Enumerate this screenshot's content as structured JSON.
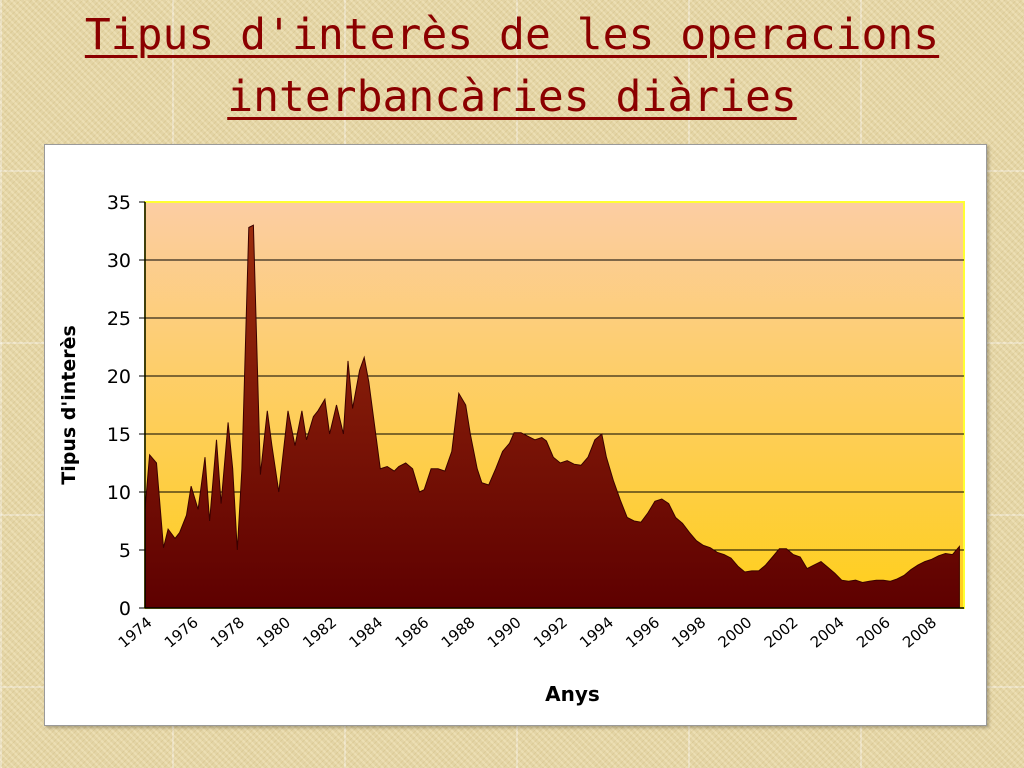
{
  "title_line1": "Tipus d'interès de les operacions",
  "title_line2": "interbancàries diàries",
  "colors": {
    "title": "#8b0000",
    "area_top": "#9c2d0e",
    "area_bottom": "#5e0000",
    "plot_bg_top": "#fccda3",
    "plot_bg_bottom": "#ffcf1a",
    "plot_border": "#ffff33"
  },
  "chart_data": {
    "type": "area",
    "title": "",
    "xlabel": "Anys",
    "ylabel": "Tipus d'interès",
    "xlim": [
      1974,
      2009.5
    ],
    "ylim": [
      0,
      35
    ],
    "yticks": [
      "0",
      "5",
      "10",
      "15",
      "20",
      "25",
      "30",
      "35"
    ],
    "xticks": [
      "1974",
      "1976",
      "1978",
      "1980",
      "1982",
      "1984",
      "1986",
      "1988",
      "1990",
      "1992",
      "1994",
      "1996",
      "1998",
      "2000",
      "2002",
      "2004",
      "2006",
      "2008"
    ],
    "grid": "horizontal",
    "series": [
      {
        "name": "",
        "x": [
          1974.0,
          1974.2,
          1974.5,
          1974.8,
          1975.0,
          1975.3,
          1975.5,
          1975.8,
          1976.0,
          1976.3,
          1976.6,
          1976.8,
          1977.1,
          1977.3,
          1977.6,
          1977.8,
          1978.0,
          1978.2,
          1978.5,
          1978.7,
          1979.0,
          1979.3,
          1979.5,
          1979.8,
          1980.0,
          1980.2,
          1980.5,
          1980.8,
          1981.0,
          1981.3,
          1981.5,
          1981.8,
          1982.0,
          1982.3,
          1982.6,
          1982.8,
          1983.0,
          1983.3,
          1983.5,
          1983.7,
          1984.0,
          1984.2,
          1984.5,
          1984.8,
          1985.0,
          1985.3,
          1985.6,
          1985.9,
          1986.1,
          1986.4,
          1986.7,
          1987.0,
          1987.3,
          1987.6,
          1987.9,
          1988.1,
          1988.4,
          1988.6,
          1988.9,
          1989.2,
          1989.5,
          1989.8,
          1990.0,
          1990.3,
          1990.6,
          1990.9,
          1991.2,
          1991.4,
          1991.7,
          1992.0,
          1992.3,
          1992.6,
          1992.9,
          1993.2,
          1993.5,
          1993.8,
          1994.0,
          1994.3,
          1994.6,
          1994.9,
          1995.2,
          1995.5,
          1995.8,
          1996.1,
          1996.4,
          1996.7,
          1997.0,
          1997.3,
          1997.6,
          1997.9,
          1998.2,
          1998.5,
          1998.8,
          1999.1,
          1999.4,
          1999.7,
          2000.0,
          2000.3,
          2000.6,
          2000.9,
          2001.2,
          2001.5,
          2001.8,
          2002.1,
          2002.4,
          2002.7,
          2003.0,
          2003.3,
          2003.6,
          2003.9,
          2004.2,
          2004.5,
          2004.8,
          2005.1,
          2005.4,
          2005.7,
          2006.0,
          2006.3,
          2006.6,
          2006.9,
          2007.2,
          2007.5,
          2007.8,
          2008.1,
          2008.4,
          2008.7,
          2009.0,
          2009.3
        ],
        "values": [
          8.5,
          13.2,
          12.5,
          5.2,
          6.8,
          6.0,
          6.5,
          8.0,
          10.5,
          8.5,
          13.0,
          7.5,
          14.5,
          9.0,
          16.0,
          12.0,
          5.0,
          12.0,
          32.8,
          33.0,
          11.5,
          17.0,
          14.0,
          10.0,
          13.5,
          17.0,
          14.0,
          17.0,
          14.5,
          16.5,
          17.0,
          18.0,
          15.0,
          17.5,
          15.0,
          21.3,
          17.2,
          20.5,
          21.6,
          19.5,
          15.0,
          12.0,
          12.2,
          11.8,
          12.2,
          12.5,
          12.0,
          10.0,
          10.2,
          12.0,
          12.0,
          11.8,
          13.5,
          18.5,
          17.5,
          15.0,
          12.0,
          10.8,
          10.6,
          12.0,
          13.5,
          14.2,
          15.1,
          15.1,
          14.8,
          14.5,
          14.7,
          14.4,
          13.0,
          12.5,
          12.7,
          12.4,
          12.3,
          13.0,
          14.5,
          15.0,
          13.0,
          11.0,
          9.3,
          7.8,
          7.5,
          7.4,
          8.2,
          9.2,
          9.4,
          9.0,
          7.8,
          7.3,
          6.5,
          5.8,
          5.4,
          5.2,
          4.8,
          4.6,
          4.3,
          3.6,
          3.1,
          3.2,
          3.2,
          3.7,
          4.4,
          5.1,
          5.1,
          4.6,
          4.4,
          3.4,
          3.7,
          4.0,
          3.5,
          3.0,
          2.4,
          2.3,
          2.4,
          2.2,
          2.3,
          2.4,
          2.4,
          2.3,
          2.5,
          2.8,
          3.3,
          3.7,
          4.0,
          4.2,
          4.5,
          4.7,
          4.6,
          5.3
        ]
      }
    ]
  }
}
